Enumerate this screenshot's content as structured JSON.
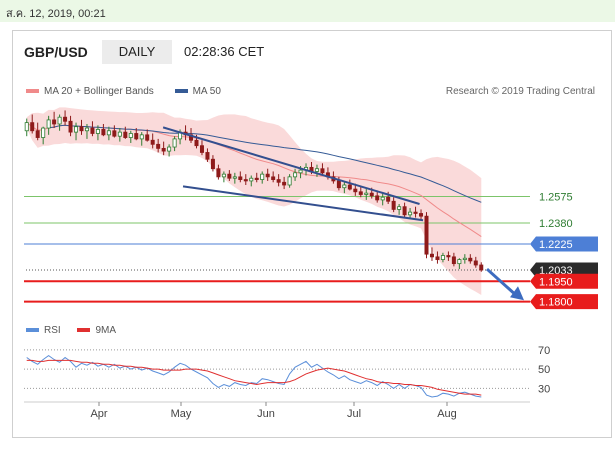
{
  "date_stamp": "ส.ค. 12, 2019, 00:21",
  "header": {
    "pair": "GBP/USD",
    "timeframe": "DAILY",
    "time": "02:28:36 CET"
  },
  "legend": [
    {
      "label": "MA 20 + Bollinger Bands",
      "color": "#f08a8a"
    },
    {
      "label": "MA 50",
      "color": "#355b96"
    }
  ],
  "credit": "Research © 2019 Trading Central",
  "rsi_legend": [
    {
      "label": "RSI",
      "color": "#5b8fd9"
    },
    {
      "label": "9MA",
      "color": "#e03030"
    }
  ],
  "colors": {
    "up": "#2f7d32",
    "down": "#8e1b1b",
    "band": "#f9d3d3",
    "ma20": "#f08a8a",
    "ma50": "#355b96",
    "green_level": "#7cc46a",
    "blue_level": "#4d7fd6",
    "red_level": "#e81c1c",
    "trend": "#334f8f"
  },
  "chart_data": [
    {
      "type": "candlestick",
      "title": "GBP/USD DAILY",
      "x_labels": [
        "Apr",
        "May",
        "Jun",
        "Jul",
        "Aug"
      ],
      "ylim": [
        1.1775,
        1.325
      ],
      "ohlc": [
        [
          1.306,
          1.315,
          1.302,
          1.312
        ],
        [
          1.312,
          1.318,
          1.304,
          1.306
        ],
        [
          1.306,
          1.312,
          1.299,
          1.301
        ],
        [
          1.301,
          1.309,
          1.296,
          1.308
        ],
        [
          1.308,
          1.317,
          1.303,
          1.314
        ],
        [
          1.314,
          1.32,
          1.308,
          1.311
        ],
        [
          1.311,
          1.318,
          1.306,
          1.316
        ],
        [
          1.316,
          1.321,
          1.31,
          1.313
        ],
        [
          1.313,
          1.317,
          1.302,
          1.305
        ],
        [
          1.305,
          1.312,
          1.299,
          1.309
        ],
        [
          1.309,
          1.314,
          1.303,
          1.306
        ],
        [
          1.306,
          1.311,
          1.3,
          1.308
        ],
        [
          1.308,
          1.313,
          1.302,
          1.304
        ],
        [
          1.304,
          1.31,
          1.299,
          1.307
        ],
        [
          1.307,
          1.311,
          1.302,
          1.303
        ],
        [
          1.303,
          1.309,
          1.299,
          1.306
        ],
        [
          1.306,
          1.31,
          1.301,
          1.302
        ],
        [
          1.302,
          1.308,
          1.298,
          1.305
        ],
        [
          1.305,
          1.309,
          1.3,
          1.301
        ],
        [
          1.301,
          1.306,
          1.297,
          1.304
        ],
        [
          1.304,
          1.308,
          1.299,
          1.3
        ],
        [
          1.3,
          1.305,
          1.295,
          1.303
        ],
        [
          1.303,
          1.307,
          1.298,
          1.299
        ],
        [
          1.299,
          1.304,
          1.293,
          1.296
        ],
        [
          1.296,
          1.3,
          1.29,
          1.293
        ],
        [
          1.293,
          1.298,
          1.288,
          1.291
        ],
        [
          1.291,
          1.296,
          1.287,
          1.294
        ],
        [
          1.294,
          1.302,
          1.291,
          1.3
        ],
        [
          1.3,
          1.307,
          1.296,
          1.305
        ],
        [
          1.305,
          1.31,
          1.299,
          1.303
        ],
        [
          1.303,
          1.308,
          1.297,
          1.299
        ],
        [
          1.299,
          1.303,
          1.293,
          1.295
        ],
        [
          1.295,
          1.299,
          1.288,
          1.29
        ],
        [
          1.29,
          1.293,
          1.283,
          1.285
        ],
        [
          1.285,
          1.288,
          1.276,
          1.278
        ],
        [
          1.278,
          1.281,
          1.27,
          1.272
        ],
        [
          1.272,
          1.276,
          1.268,
          1.274
        ],
        [
          1.274,
          1.277,
          1.269,
          1.271
        ],
        [
          1.271,
          1.275,
          1.267,
          1.272
        ],
        [
          1.272,
          1.276,
          1.268,
          1.27
        ],
        [
          1.27,
          1.274,
          1.266,
          1.269
        ],
        [
          1.269,
          1.273,
          1.265,
          1.271
        ],
        [
          1.271,
          1.275,
          1.268,
          1.27
        ],
        [
          1.27,
          1.276,
          1.267,
          1.274
        ],
        [
          1.274,
          1.278,
          1.269,
          1.272
        ],
        [
          1.272,
          1.276,
          1.268,
          1.27
        ],
        [
          1.27,
          1.274,
          1.265,
          1.268
        ],
        [
          1.268,
          1.272,
          1.263,
          1.266
        ],
        [
          1.266,
          1.274,
          1.264,
          1.272
        ],
        [
          1.272,
          1.278,
          1.269,
          1.275
        ],
        [
          1.275,
          1.28,
          1.271,
          1.277
        ],
        [
          1.277,
          1.282,
          1.273,
          1.279
        ],
        [
          1.279,
          1.283,
          1.274,
          1.276
        ],
        [
          1.276,
          1.281,
          1.272,
          1.278
        ],
        [
          1.278,
          1.282,
          1.273,
          1.275
        ],
        [
          1.275,
          1.279,
          1.27,
          1.272
        ],
        [
          1.272,
          1.276,
          1.267,
          1.269
        ],
        [
          1.269,
          1.272,
          1.262,
          1.264
        ],
        [
          1.264,
          1.268,
          1.26,
          1.266
        ],
        [
          1.266,
          1.27,
          1.262,
          1.263
        ],
        [
          1.263,
          1.267,
          1.258,
          1.261
        ],
        [
          1.261,
          1.265,
          1.257,
          1.259
        ],
        [
          1.259,
          1.263,
          1.255,
          1.26
        ],
        [
          1.26,
          1.264,
          1.256,
          1.258
        ],
        [
          1.258,
          1.262,
          1.253,
          1.255
        ],
        [
          1.255,
          1.26,
          1.251,
          1.257
        ],
        [
          1.257,
          1.261,
          1.252,
          1.254
        ],
        [
          1.254,
          1.257,
          1.246,
          1.248
        ],
        [
          1.248,
          1.252,
          1.244,
          1.25
        ],
        [
          1.25,
          1.253,
          1.242,
          1.244
        ],
        [
          1.244,
          1.249,
          1.241,
          1.246
        ],
        [
          1.246,
          1.25,
          1.242,
          1.245
        ],
        [
          1.245,
          1.248,
          1.24,
          1.243
        ],
        [
          1.243,
          1.246,
          1.212,
          1.215
        ],
        [
          1.215,
          1.22,
          1.21,
          1.213
        ],
        [
          1.213,
          1.217,
          1.208,
          1.211
        ],
        [
          1.211,
          1.216,
          1.209,
          1.214
        ],
        [
          1.214,
          1.217,
          1.21,
          1.213
        ],
        [
          1.213,
          1.216,
          1.206,
          1.208
        ],
        [
          1.208,
          1.212,
          1.204,
          1.211
        ],
        [
          1.211,
          1.215,
          1.208,
          1.212
        ],
        [
          1.212,
          1.215,
          1.208,
          1.21
        ],
        [
          1.21,
          1.213,
          1.205,
          1.207
        ],
        [
          1.207,
          1.209,
          1.202,
          1.2033
        ]
      ],
      "levels": [
        {
          "value": 1.2575,
          "label": "1.2575",
          "style": "green"
        },
        {
          "value": 1.238,
          "label": "1.2380",
          "style": "green"
        },
        {
          "value": 1.2225,
          "label": "1.2225",
          "style": "blue"
        },
        {
          "value": 1.2033,
          "label": "1.2033",
          "style": "current"
        },
        {
          "value": 1.195,
          "label": "1.1950",
          "style": "red"
        },
        {
          "value": 1.18,
          "label": "1.1800",
          "style": "red"
        }
      ]
    },
    {
      "type": "line",
      "title": "RSI",
      "series": [
        {
          "name": "RSI",
          "values": [
            62,
            58,
            55,
            60,
            64,
            60,
            57,
            62,
            58,
            52,
            56,
            54,
            57,
            53,
            55,
            52,
            55,
            51,
            53,
            50,
            52,
            49,
            51,
            48,
            46,
            44,
            47,
            52,
            56,
            54,
            50,
            47,
            44,
            41,
            35,
            31,
            34,
            32,
            36,
            34,
            33,
            36,
            35,
            40,
            39,
            37,
            35,
            34,
            45,
            52,
            55,
            58,
            52,
            55,
            51,
            47,
            44,
            40,
            43,
            39,
            37,
            35,
            38,
            36,
            33,
            37,
            34,
            30,
            34,
            30,
            34,
            33,
            31,
            23,
            21,
            22,
            25,
            24,
            22,
            25,
            26,
            24,
            22,
            21
          ]
        },
        {
          "name": "9MA",
          "values": [
            59,
            59,
            58,
            58,
            59,
            59,
            59,
            59,
            59,
            58,
            57,
            57,
            56,
            56,
            55,
            55,
            54,
            54,
            53,
            53,
            52,
            52,
            51,
            50,
            50,
            49,
            49,
            49,
            49,
            50,
            50,
            50,
            49,
            48,
            46,
            44,
            42,
            40,
            38,
            37,
            36,
            35,
            34,
            35,
            36,
            36,
            36,
            36,
            37,
            39,
            42,
            45,
            47,
            49,
            50,
            51,
            50,
            49,
            48,
            46,
            44,
            42,
            40,
            39,
            37,
            36,
            36,
            35,
            35,
            34,
            34,
            33,
            33,
            32,
            31,
            29,
            28,
            27,
            26,
            25,
            24,
            24,
            24,
            23
          ]
        }
      ],
      "y_ticks": [
        "70",
        "50",
        "30"
      ],
      "ylim": [
        20,
        75
      ]
    }
  ]
}
